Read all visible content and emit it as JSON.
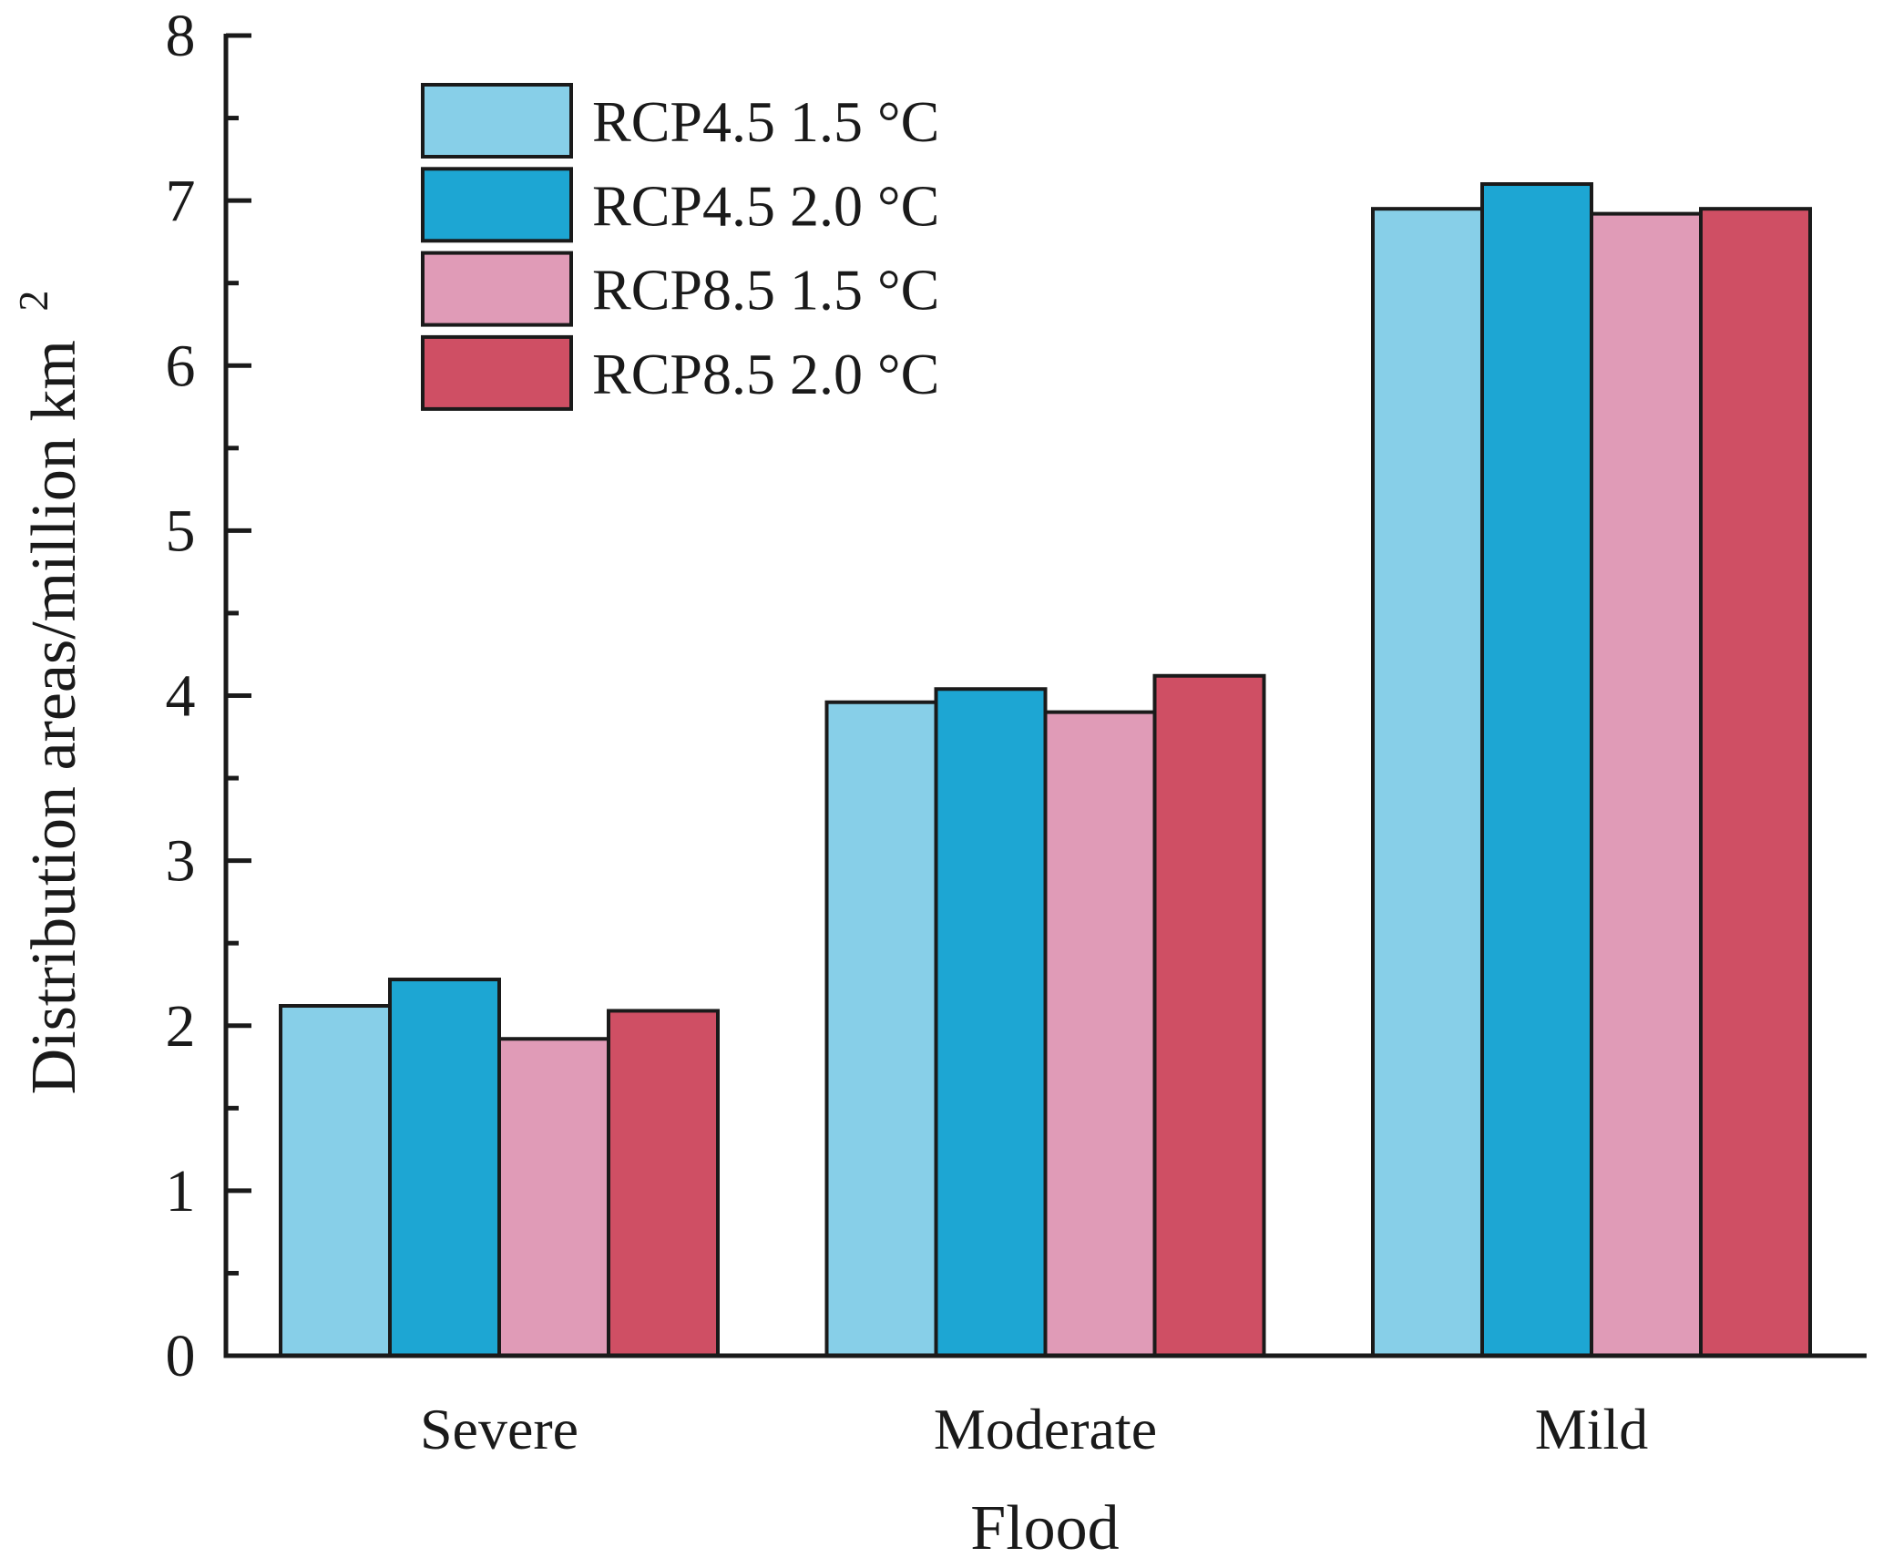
{
  "chart_data": {
    "type": "bar",
    "title": "",
    "xlabel": "Flood",
    "ylabel": "Distribution areas/million km",
    "ylabel_superscript": "2",
    "ylim": [
      0,
      8
    ],
    "yticks": [
      0,
      1,
      2,
      3,
      4,
      5,
      6,
      7,
      8
    ],
    "ytick_labels": [
      "0",
      "1",
      "2",
      "3",
      "4",
      "5",
      "6",
      "7",
      "8"
    ],
    "minor_ticks_per_major": 1,
    "grid": false,
    "legend_position": "top-left",
    "categories": [
      "Severe",
      "Moderate",
      "Mild"
    ],
    "series": [
      {
        "name": "RCP4.5 1.5 °C",
        "color": "#87CFE8",
        "values": [
          2.12,
          3.96,
          6.95
        ]
      },
      {
        "name": "RCP4.5 2.0 °C",
        "color": "#1DA6D3",
        "values": [
          2.28,
          4.04,
          7.1
        ]
      },
      {
        "name": "RCP8.5 1.5 °C",
        "color": "#E09BB7",
        "values": [
          1.92,
          3.9,
          6.92
        ]
      },
      {
        "name": "RCP8.5 2.0 °C",
        "color": "#CF4F64",
        "values": [
          2.09,
          4.12,
          6.95
        ]
      }
    ]
  }
}
